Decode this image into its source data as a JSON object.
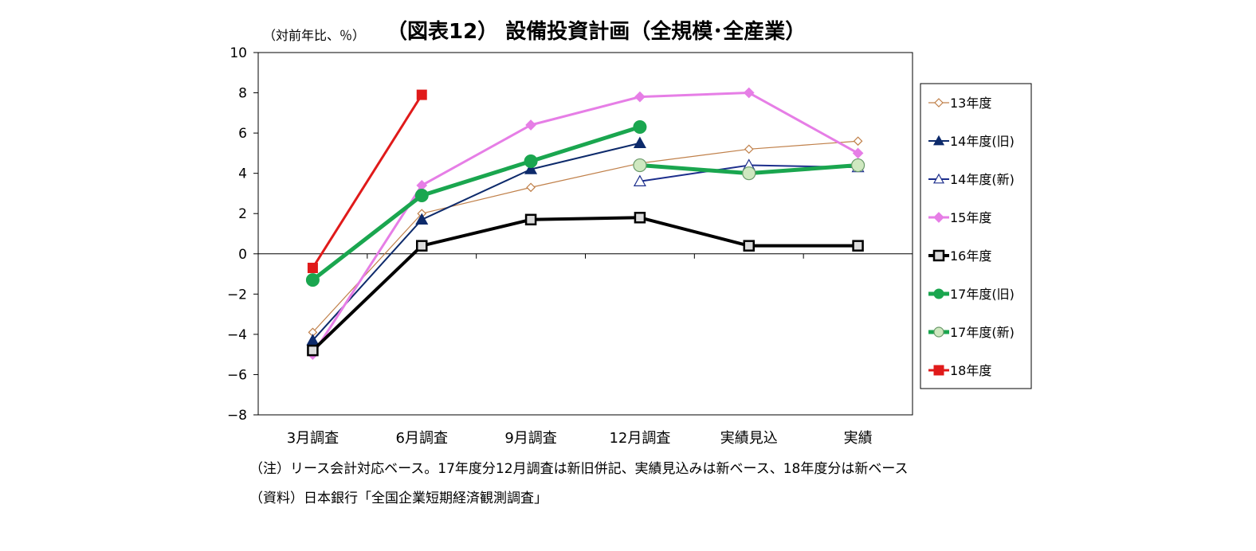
{
  "chart_data": {
    "type": "line",
    "title": "（図表12） 設備投資計画（全規模･全産業）",
    "ylabel": "（対前年比、％）",
    "xlabel": "",
    "categories": [
      "3月調査",
      "6月調査",
      "9月調査",
      "12月調査",
      "実績見込",
      "実績"
    ],
    "ylim": [
      -8,
      10
    ],
    "yticks": [
      10,
      8,
      6,
      4,
      2,
      0,
      -2,
      -4,
      -6,
      -8
    ],
    "ytick_labels": [
      "10",
      "8",
      "6",
      "4",
      "2",
      "0",
      "−2",
      "−4",
      "−6",
      "−8"
    ],
    "grid": false,
    "legend_position": "right",
    "series": [
      {
        "name": "13年度",
        "color": "#c0804a",
        "marker": "diamond-open",
        "values": [
          -3.9,
          2.0,
          3.3,
          4.5,
          5.2,
          5.6
        ]
      },
      {
        "name": "14年度(旧)",
        "color": "#0d2a6b",
        "marker": "triangle-filled",
        "values": [
          -4.3,
          1.7,
          4.2,
          5.5,
          null,
          null
        ]
      },
      {
        "name": "14年度(新)",
        "color": "#1c2e8c",
        "marker": "triangle-open",
        "values": [
          null,
          null,
          null,
          3.6,
          4.4,
          4.3
        ]
      },
      {
        "name": "15年度",
        "color": "#e67ee6",
        "marker": "diamond-filled",
        "values": [
          -5.0,
          3.4,
          6.4,
          7.8,
          8.0,
          5.0
        ]
      },
      {
        "name": "16年度",
        "color": "#000000",
        "marker": "square-open",
        "values": [
          -4.8,
          0.4,
          1.7,
          1.8,
          0.4,
          0.4
        ]
      },
      {
        "name": "17年度(旧)",
        "color": "#1aa64f",
        "marker": "circle-filled",
        "values": [
          -1.3,
          2.9,
          4.6,
          6.3,
          null,
          null
        ]
      },
      {
        "name": "17年度(新)",
        "color": "#1aa64f",
        "marker": "circle-light",
        "values": [
          null,
          null,
          null,
          4.4,
          4.0,
          4.4
        ]
      },
      {
        "name": "18年度",
        "color": "#e01a1a",
        "marker": "square-filled",
        "values": [
          -0.7,
          7.9,
          null,
          null,
          null,
          null
        ]
      }
    ]
  },
  "notes": {
    "note1": "（注）リース会計対応ベース。17年度分12月調査は新旧併記、実績見込みは新ベース、18年度分は新ベース",
    "source": "（資料）日本銀行「全国企業短期経済観測調査」"
  }
}
